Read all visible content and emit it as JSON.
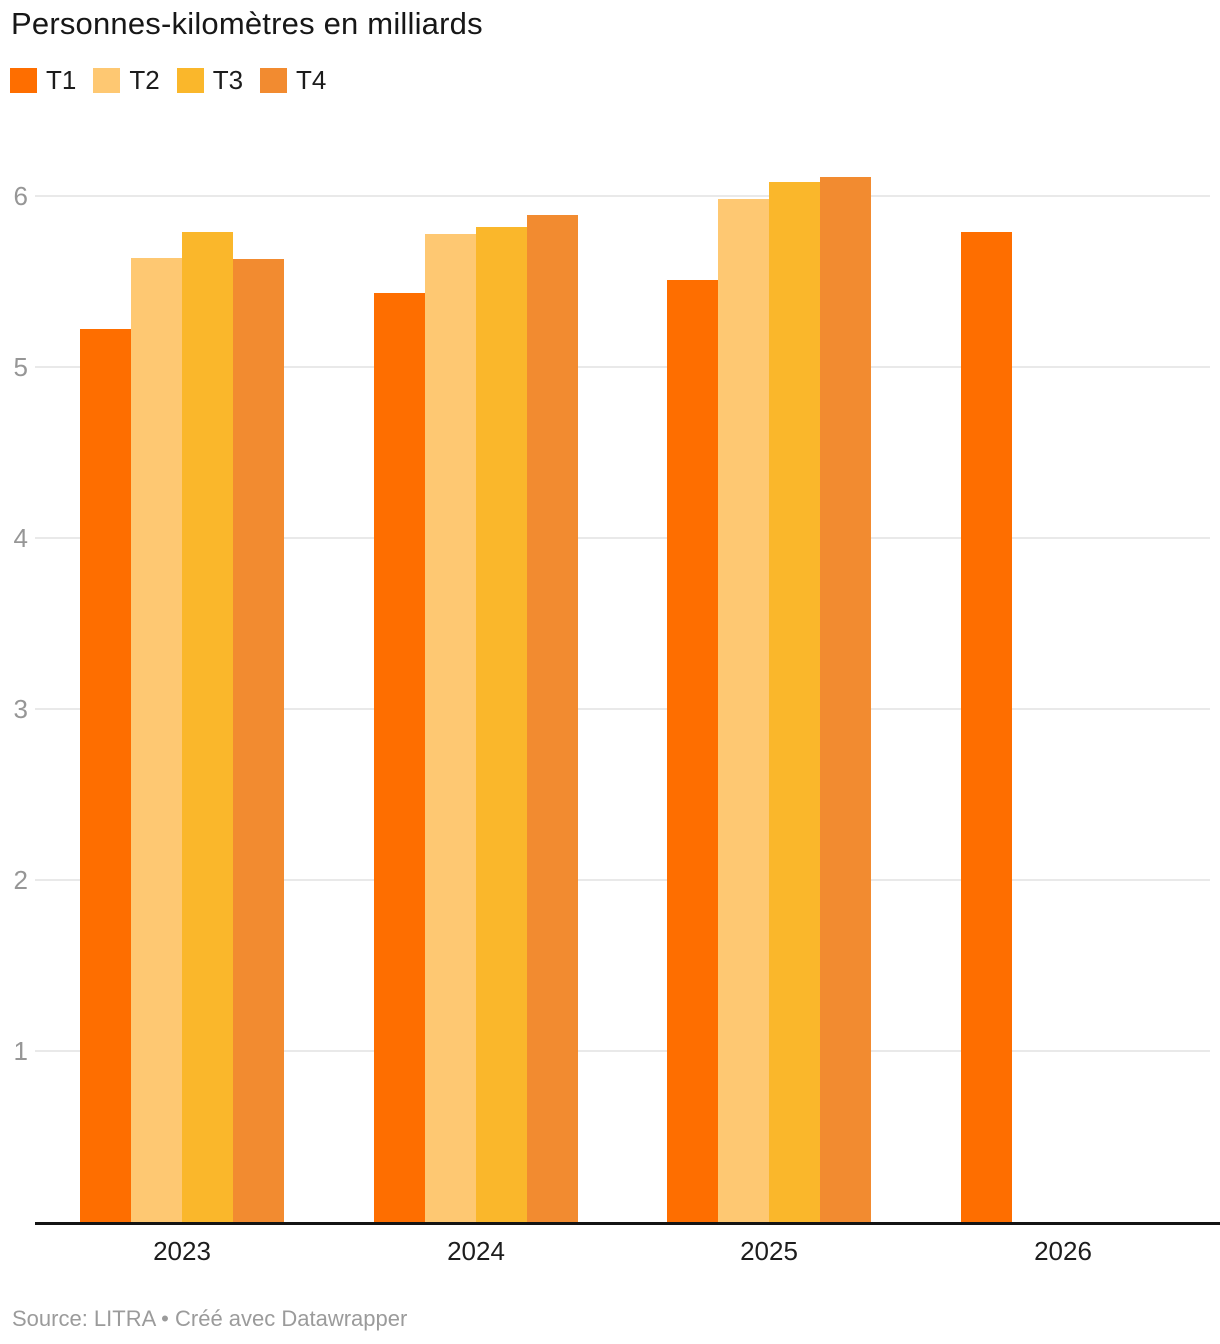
{
  "title": "Personnes-kilomètres en milliards",
  "source": "Source: LITRA • Créé avec Datawrapper",
  "legend": {
    "items": [
      {
        "label": "T1",
        "color": "#FE6E00"
      },
      {
        "label": "T2",
        "color": "#FEC872"
      },
      {
        "label": "T3",
        "color": "#FAB72B"
      },
      {
        "label": "T4",
        "color": "#F28B30"
      }
    ]
  },
  "chart_data": {
    "type": "bar",
    "title": "Personnes-kilomètres en milliards",
    "categories": [
      "2023",
      "2024",
      "2025",
      "2026"
    ],
    "series": [
      {
        "name": "T1",
        "color": "#FE6E00",
        "values": [
          5.22,
          5.43,
          5.51,
          5.79
        ]
      },
      {
        "name": "T2",
        "color": "#FEC872",
        "values": [
          5.64,
          5.78,
          5.98,
          null
        ]
      },
      {
        "name": "T3",
        "color": "#FAB72B",
        "values": [
          5.79,
          5.82,
          6.08,
          null
        ]
      },
      {
        "name": "T4",
        "color": "#F28B30",
        "values": [
          5.63,
          5.89,
          6.11,
          null
        ]
      }
    ],
    "xlabel": "",
    "ylabel": "",
    "ylim": [
      0,
      6.6
    ],
    "yticks": [
      1,
      2,
      3,
      4,
      5,
      6
    ],
    "grid": true,
    "legend_position": "top",
    "source_note": "Source: LITRA • Créé avec Datawrapper"
  }
}
